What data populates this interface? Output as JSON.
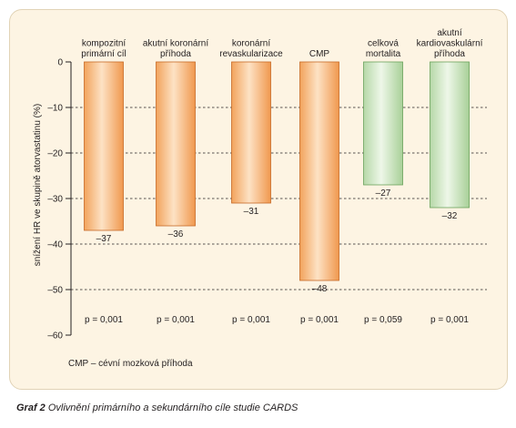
{
  "chart_data": {
    "type": "bar",
    "categories": [
      [
        "kompozitní",
        "primární cíl"
      ],
      [
        "akutní koronární",
        "příhoda"
      ],
      [
        "koronární",
        "revaskularizace"
      ],
      [
        "CMP"
      ],
      [
        "celková",
        "mortalita"
      ],
      [
        "akutní",
        "kardiovaskulární",
        "příhoda"
      ]
    ],
    "values": [
      -37,
      -36,
      -31,
      -48,
      -27,
      -32
    ],
    "value_labels": [
      "–37",
      "–36",
      "–31",
      "–48",
      "–27",
      "–32"
    ],
    "p_values": [
      "p = 0,001",
      "p = 0,001",
      "p = 0,001",
      "p = 0,001",
      "p = 0,059",
      "p = 0,001"
    ],
    "bar_colors": [
      "orange",
      "orange",
      "orange",
      "orange",
      "green",
      "green"
    ],
    "ylabel": "snížení HR ve skupině atorvastatinu (%)",
    "ylim": [
      -60,
      0
    ],
    "yticks": [
      0,
      -10,
      -20,
      -30,
      -40,
      -50,
      -60
    ],
    "ytick_labels": [
      "0",
      "–10",
      "–20",
      "–30",
      "–40",
      "–50",
      "–60"
    ],
    "grid": "dashed horizontal",
    "note": "CMP – cévní mozková příhoda"
  },
  "caption": {
    "label": "Graf 2",
    "text": "Ovlivnění primárního a sekundárního cíle studie CARDS"
  }
}
